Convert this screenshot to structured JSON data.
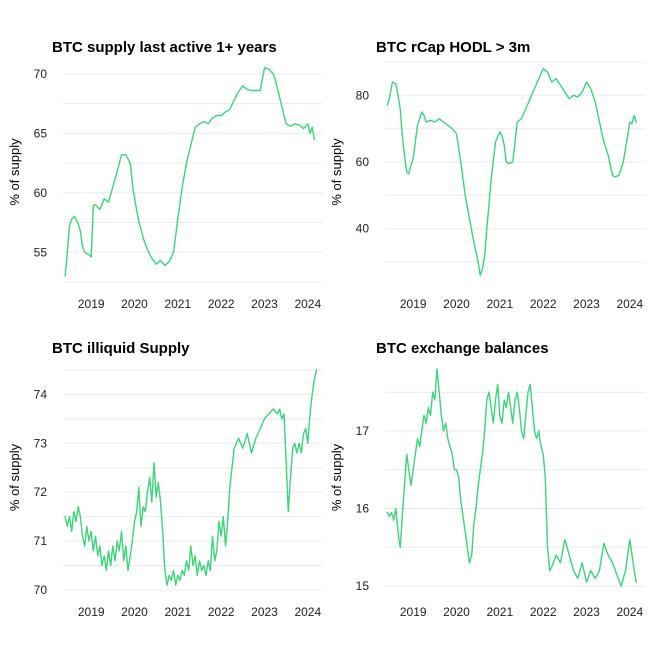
{
  "chart_data": [
    {
      "type": "line",
      "title": "BTC supply last active 1+ years",
      "ylabel": "% of supply",
      "xlabel": "",
      "xlim": [
        2018.35,
        2024.35
      ],
      "ylim": [
        52.5,
        71.0
      ],
      "xticks": [
        2019,
        2020,
        2021,
        2022,
        2023,
        2024
      ],
      "xtick_labels": [
        "2019",
        "2020",
        "2021",
        "2022",
        "2023",
        "2024"
      ],
      "yticks": [
        55,
        60,
        65,
        70
      ],
      "ytick_labels": [
        "55",
        "60",
        "65",
        "70"
      ],
      "grid": "horizontal",
      "color": "#3ad67a",
      "series": [
        {
          "x": [
            2018.4,
            2018.45,
            2018.5,
            2018.55,
            2018.62,
            2018.7,
            2018.75,
            2018.8,
            2018.85,
            2018.9,
            2018.95,
            2019.0,
            2019.05,
            2019.1,
            2019.2,
            2019.3,
            2019.4,
            2019.5,
            2019.6,
            2019.7,
            2019.8,
            2019.9,
            2019.97,
            2020.05,
            2020.1,
            2020.2,
            2020.3,
            2020.4,
            2020.5,
            2020.6,
            2020.7,
            2020.8,
            2020.9,
            2021.0,
            2021.1,
            2021.2,
            2021.3,
            2021.4,
            2021.5,
            2021.6,
            2021.7,
            2021.8,
            2021.9,
            2022.0,
            2022.1,
            2022.2,
            2022.3,
            2022.4,
            2022.5,
            2022.6,
            2022.7,
            2022.8,
            2022.9,
            2023.0,
            2023.1,
            2023.2,
            2023.25,
            2023.35,
            2023.45,
            2023.5,
            2023.6,
            2023.7,
            2023.8,
            2023.9,
            2024.0,
            2024.05,
            2024.1,
            2024.15
          ],
          "y": [
            53.0,
            55.0,
            57.2,
            57.8,
            58.0,
            57.4,
            56.8,
            55.5,
            55.0,
            54.9,
            54.8,
            54.6,
            58.9,
            59.0,
            58.6,
            59.5,
            59.2,
            60.5,
            61.8,
            63.2,
            63.2,
            62.5,
            60.2,
            58.5,
            57.6,
            56.2,
            55.2,
            54.5,
            54.0,
            54.3,
            53.9,
            54.2,
            55.0,
            57.8,
            60.5,
            62.5,
            64.0,
            65.5,
            65.8,
            66.0,
            65.8,
            66.3,
            66.5,
            66.5,
            66.8,
            67.0,
            67.8,
            68.5,
            69.0,
            68.7,
            68.6,
            68.6,
            68.6,
            70.5,
            70.4,
            70.0,
            69.5,
            68.0,
            66.5,
            65.8,
            65.6,
            65.8,
            65.7,
            65.4,
            65.8,
            65.0,
            65.5,
            64.5
          ]
        }
      ]
    },
    {
      "type": "line",
      "title": "BTC rCap HODL > 3m",
      "ylabel": "% of supply",
      "xlabel": "",
      "xlim": [
        2018.35,
        2024.35
      ],
      "ylim": [
        24,
        90
      ],
      "xticks": [
        2019,
        2020,
        2021,
        2022,
        2023,
        2024
      ],
      "xtick_labels": [
        "2019",
        "2020",
        "2021",
        "2022",
        "2023",
        "2024"
      ],
      "yticks": [
        40,
        60,
        80
      ],
      "ytick_labels": [
        "40",
        "60",
        "80"
      ],
      "grid": "horizontal",
      "color": "#3ad67a",
      "series": [
        {
          "x": [
            2018.4,
            2018.45,
            2018.52,
            2018.6,
            2018.65,
            2018.7,
            2018.75,
            2018.8,
            2018.85,
            2018.9,
            2018.95,
            2019.0,
            2019.05,
            2019.1,
            2019.15,
            2019.2,
            2019.25,
            2019.3,
            2019.4,
            2019.5,
            2019.6,
            2019.7,
            2019.8,
            2019.9,
            2020.0,
            2020.1,
            2020.2,
            2020.3,
            2020.4,
            2020.5,
            2020.55,
            2020.6,
            2020.65,
            2020.7,
            2020.8,
            2020.9,
            2021.0,
            2021.05,
            2021.1,
            2021.15,
            2021.2,
            2021.3,
            2021.35,
            2021.4,
            2021.5,
            2021.6,
            2021.7,
            2021.8,
            2021.9,
            2022.0,
            2022.1,
            2022.2,
            2022.3,
            2022.4,
            2022.5,
            2022.6,
            2022.7,
            2022.8,
            2022.9,
            2023.0,
            2023.1,
            2023.2,
            2023.3,
            2023.4,
            2023.5,
            2023.6,
            2023.65,
            2023.75,
            2023.85,
            2023.95,
            2024.0,
            2024.05,
            2024.1,
            2024.15
          ],
          "y": [
            77.0,
            79.0,
            84.0,
            83.5,
            80.0,
            76.0,
            68.0,
            62.0,
            57.0,
            56.5,
            59.0,
            61.0,
            66.0,
            71.0,
            73.0,
            75.0,
            74.0,
            72.0,
            72.5,
            72.0,
            73.0,
            72.0,
            71.0,
            70.0,
            68.5,
            60.0,
            50.0,
            43.0,
            36.0,
            30.0,
            26.0,
            28.0,
            32.0,
            40.0,
            55.0,
            66.0,
            69.0,
            68.0,
            65.0,
            60.0,
            59.5,
            60.0,
            66.0,
            72.0,
            73.0,
            76.0,
            79.0,
            82.0,
            85.0,
            88.0,
            87.0,
            84.0,
            85.0,
            83.0,
            81.0,
            79.0,
            80.0,
            79.5,
            81.0,
            84.0,
            82.0,
            78.0,
            72.0,
            66.0,
            62.0,
            56.0,
            55.5,
            56.0,
            60.0,
            68.0,
            72.0,
            71.5,
            74.0,
            72.0
          ]
        }
      ]
    },
    {
      "type": "line",
      "title": "BTC illiquid Supply",
      "ylabel": "% of supply",
      "xlabel": "",
      "xlim": [
        2018.35,
        2024.35
      ],
      "ylim": [
        70.0,
        74.6
      ],
      "xticks": [
        2019,
        2020,
        2021,
        2022,
        2023,
        2024
      ],
      "xtick_labels": [
        "2019",
        "2020",
        "2021",
        "2022",
        "2023",
        "2024"
      ],
      "yticks": [
        70,
        71,
        72,
        73,
        74
      ],
      "ytick_labels": [
        "70",
        "71",
        "72",
        "73",
        "74"
      ],
      "grid": "horizontal",
      "color": "#3ad67a",
      "series": [
        {
          "x": [
            2018.4,
            2018.45,
            2018.5,
            2018.55,
            2018.6,
            2018.65,
            2018.7,
            2018.75,
            2018.8,
            2018.85,
            2018.9,
            2018.95,
            2019.0,
            2019.05,
            2019.1,
            2019.15,
            2019.2,
            2019.25,
            2019.3,
            2019.35,
            2019.4,
            2019.45,
            2019.5,
            2019.55,
            2019.6,
            2019.65,
            2019.7,
            2019.75,
            2019.8,
            2019.85,
            2019.9,
            2019.95,
            2020.0,
            2020.05,
            2020.1,
            2020.15,
            2020.2,
            2020.25,
            2020.3,
            2020.35,
            2020.4,
            2020.45,
            2020.5,
            2020.55,
            2020.6,
            2020.65,
            2020.7,
            2020.75,
            2020.8,
            2020.85,
            2020.9,
            2020.95,
            2021.0,
            2021.05,
            2021.1,
            2021.15,
            2021.2,
            2021.25,
            2021.3,
            2021.35,
            2021.4,
            2021.45,
            2021.5,
            2021.55,
            2021.6,
            2021.65,
            2021.7,
            2021.75,
            2021.8,
            2021.85,
            2021.9,
            2021.95,
            2022.0,
            2022.05,
            2022.1,
            2022.15,
            2022.2,
            2022.3,
            2022.4,
            2022.5,
            2022.6,
            2022.7,
            2022.8,
            2022.9,
            2023.0,
            2023.1,
            2023.2,
            2023.3,
            2023.35,
            2023.4,
            2023.45,
            2023.5,
            2023.55,
            2023.6,
            2023.65,
            2023.7,
            2023.75,
            2023.8,
            2023.85,
            2023.9,
            2023.95,
            2024.0,
            2024.05,
            2024.1,
            2024.15,
            2024.2
          ],
          "y": [
            71.5,
            71.3,
            71.5,
            71.2,
            71.6,
            71.4,
            71.7,
            71.5,
            71.1,
            70.9,
            71.3,
            71.0,
            71.2,
            70.8,
            71.1,
            70.7,
            70.9,
            70.5,
            70.7,
            70.4,
            70.8,
            70.5,
            70.9,
            70.6,
            71.0,
            70.8,
            71.2,
            70.6,
            70.9,
            70.4,
            70.7,
            71.0,
            71.4,
            71.6,
            72.1,
            71.3,
            71.7,
            71.6,
            72.0,
            72.3,
            71.8,
            72.6,
            71.9,
            72.2,
            71.8,
            71.2,
            70.4,
            70.1,
            70.3,
            70.2,
            70.4,
            70.1,
            70.3,
            70.2,
            70.4,
            70.3,
            70.6,
            70.4,
            70.9,
            70.5,
            70.7,
            70.3,
            70.6,
            70.4,
            70.5,
            70.3,
            70.6,
            70.4,
            71.1,
            70.6,
            70.8,
            71.4,
            71.1,
            71.5,
            70.9,
            71.4,
            72.1,
            72.9,
            73.1,
            72.9,
            73.2,
            72.8,
            73.1,
            73.3,
            73.5,
            73.6,
            73.7,
            73.6,
            73.7,
            73.5,
            73.6,
            72.6,
            71.6,
            72.3,
            72.9,
            73.0,
            72.8,
            73.0,
            72.8,
            73.2,
            73.3,
            73.0,
            73.6,
            74.0,
            74.3,
            74.5
          ]
        }
      ]
    },
    {
      "type": "line",
      "title": "BTC exchange balances",
      "ylabel": "% of supply",
      "xlabel": "",
      "xlim": [
        2018.35,
        2024.35
      ],
      "ylim": [
        14.95,
        17.85
      ],
      "xticks": [
        2019,
        2020,
        2021,
        2022,
        2023,
        2024
      ],
      "xtick_labels": [
        "2019",
        "2020",
        "2021",
        "2022",
        "2023",
        "2024"
      ],
      "yticks": [
        15,
        16,
        17
      ],
      "ytick_labels": [
        "15",
        "16",
        "17"
      ],
      "grid": "horizontal",
      "color": "#3ad67a",
      "series": [
        {
          "x": [
            2018.4,
            2018.45,
            2018.5,
            2018.55,
            2018.6,
            2018.65,
            2018.7,
            2018.75,
            2018.8,
            2018.85,
            2018.9,
            2018.95,
            2019.0,
            2019.05,
            2019.1,
            2019.15,
            2019.2,
            2019.25,
            2019.3,
            2019.35,
            2019.4,
            2019.45,
            2019.5,
            2019.55,
            2019.6,
            2019.65,
            2019.7,
            2019.75,
            2019.8,
            2019.85,
            2019.9,
            2019.95,
            2020.0,
            2020.05,
            2020.1,
            2020.15,
            2020.2,
            2020.25,
            2020.3,
            2020.35,
            2020.4,
            2020.45,
            2020.5,
            2020.55,
            2020.6,
            2020.65,
            2020.7,
            2020.75,
            2020.8,
            2020.85,
            2020.9,
            2020.95,
            2021.0,
            2021.05,
            2021.1,
            2021.15,
            2021.2,
            2021.25,
            2021.3,
            2021.35,
            2021.4,
            2021.45,
            2021.5,
            2021.55,
            2021.6,
            2021.65,
            2021.7,
            2021.75,
            2021.8,
            2021.85,
            2021.9,
            2021.95,
            2022.0,
            2022.05,
            2022.1,
            2022.15,
            2022.2,
            2022.3,
            2022.4,
            2022.5,
            2022.6,
            2022.7,
            2022.8,
            2022.9,
            2023.0,
            2023.1,
            2023.2,
            2023.3,
            2023.4,
            2023.5,
            2023.6,
            2023.7,
            2023.8,
            2023.9,
            2024.0,
            2024.05,
            2024.1,
            2024.15
          ],
          "y": [
            15.95,
            15.9,
            15.95,
            15.85,
            16.0,
            15.7,
            15.5,
            15.9,
            16.3,
            16.7,
            16.5,
            16.3,
            16.5,
            16.7,
            16.9,
            16.8,
            17.0,
            17.2,
            17.1,
            17.3,
            17.2,
            17.5,
            17.4,
            17.8,
            17.5,
            17.2,
            17.0,
            17.1,
            16.9,
            16.8,
            16.7,
            16.5,
            16.5,
            16.4,
            16.1,
            15.9,
            15.7,
            15.5,
            15.3,
            15.4,
            15.8,
            16.0,
            16.3,
            16.5,
            16.7,
            17.0,
            17.4,
            17.5,
            17.3,
            17.1,
            17.4,
            17.6,
            17.2,
            17.1,
            17.4,
            17.3,
            17.5,
            17.3,
            17.1,
            17.4,
            17.5,
            17.3,
            17.0,
            16.9,
            17.2,
            17.5,
            17.6,
            17.3,
            17.0,
            16.9,
            17.0,
            16.8,
            16.7,
            16.4,
            15.5,
            15.2,
            15.25,
            15.4,
            15.3,
            15.6,
            15.4,
            15.2,
            15.1,
            15.3,
            15.05,
            15.2,
            15.1,
            15.2,
            15.55,
            15.4,
            15.3,
            15.15,
            15.0,
            15.2,
            15.6,
            15.4,
            15.2,
            15.05
          ]
        }
      ]
    }
  ]
}
